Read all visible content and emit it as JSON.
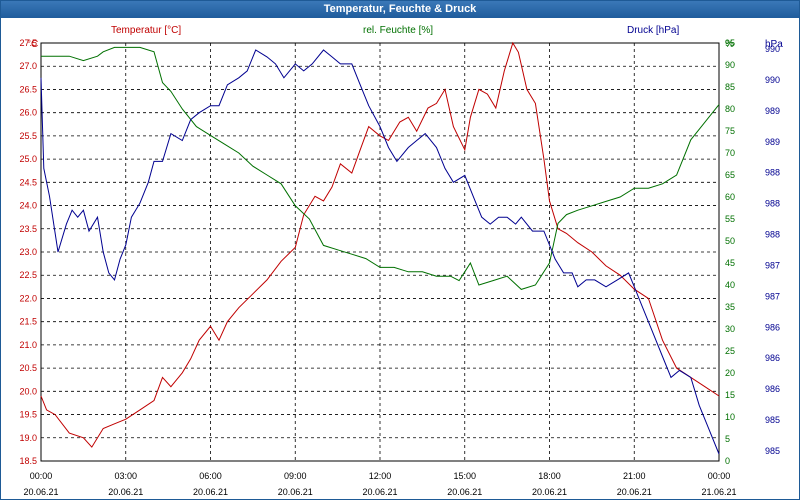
{
  "window": {
    "title": "Temperatur, Feuchte & Druck"
  },
  "chart_data": {
    "type": "line",
    "title": "Temperatur, Feuchte & Druck",
    "x_unit": "hours since 20.06.21 00:00",
    "xlim": [
      0,
      24
    ],
    "x_ticks": [
      {
        "time": "00:00",
        "date": "20.06.21"
      },
      {
        "time": "03:00",
        "date": "20.06.21"
      },
      {
        "time": "06:00",
        "date": "20.06.21"
      },
      {
        "time": "09:00",
        "date": "20.06.21"
      },
      {
        "time": "12:00",
        "date": "20.06.21"
      },
      {
        "time": "15:00",
        "date": "20.06.21"
      },
      {
        "time": "18:00",
        "date": "20.06.21"
      },
      {
        "time": "21:00",
        "date": "20.06.21"
      },
      {
        "time": "00:00",
        "date": "21.06.21"
      }
    ],
    "axes": {
      "temperature": {
        "label": "Temperatur [°C]",
        "unit": "°C",
        "min": 18.5,
        "max": 27.5,
        "ticks": [
          "18.5",
          "19.0",
          "19.5",
          "20.0",
          "20.5",
          "21.0",
          "21.5",
          "22.0",
          "22.5",
          "23.0",
          "23.5",
          "24.0",
          "24.5",
          "25.0",
          "25.5",
          "26.0",
          "26.5",
          "27.0",
          "27.5"
        ],
        "color": "#c00000"
      },
      "humidity": {
        "label": "rel. Feuchte [%]",
        "unit": "%",
        "min": 0,
        "max": 95,
        "ticks": [
          "0",
          "5",
          "10",
          "15",
          "20",
          "25",
          "30",
          "35",
          "40",
          "45",
          "50",
          "55",
          "60",
          "65",
          "70",
          "75",
          "80",
          "85",
          "90",
          "95"
        ],
        "color": "#007000"
      },
      "pressure": {
        "label": "Druck [hPa]",
        "unit": "hPa",
        "min": 984.5,
        "max": 990.5,
        "ticks": [
          "985",
          "985",
          "986",
          "986",
          "986",
          "987",
          "987",
          "988",
          "988",
          "988",
          "989",
          "989",
          "990",
          "990"
        ],
        "color": "#000090"
      }
    },
    "series": [
      {
        "name": "Temperatur [°C]",
        "axis": "temperature",
        "color": "#c00000",
        "x": [
          0,
          0.2,
          0.5,
          1,
          1.5,
          1.8,
          2.2,
          2.6,
          3,
          3.5,
          4,
          4.3,
          4.6,
          5,
          5.3,
          5.6,
          6,
          6.3,
          6.6,
          7,
          7.5,
          8,
          8.5,
          9,
          9.3,
          9.7,
          10,
          10.3,
          10.6,
          11,
          11.3,
          11.6,
          12,
          12.3,
          12.7,
          13,
          13.3,
          13.7,
          14,
          14.3,
          14.6,
          15,
          15.2,
          15.5,
          15.8,
          16.1,
          16.4,
          16.7,
          16.9,
          17.2,
          17.5,
          17.8,
          18,
          18.3,
          18.6,
          19,
          19.5,
          20,
          20.5,
          21,
          21.5,
          22,
          22.5,
          23,
          23.5,
          24
        ],
        "y": [
          19.9,
          19.6,
          19.5,
          19.1,
          19.0,
          18.8,
          19.2,
          19.3,
          19.4,
          19.6,
          19.8,
          20.3,
          20.1,
          20.4,
          20.7,
          21.1,
          21.4,
          21.1,
          21.5,
          21.8,
          22.1,
          22.4,
          22.8,
          23.1,
          23.8,
          24.2,
          24.1,
          24.4,
          24.9,
          24.7,
          25.2,
          25.7,
          25.5,
          25.4,
          25.8,
          25.9,
          25.6,
          26.1,
          26.2,
          26.5,
          25.7,
          25.2,
          25.9,
          26.5,
          26.4,
          26.1,
          26.9,
          27.5,
          27.3,
          26.5,
          26.2,
          25.0,
          24.1,
          23.5,
          23.4,
          23.2,
          23.0,
          22.7,
          22.5,
          22.2,
          22.0,
          21.1,
          20.5,
          20.3,
          20.1,
          19.9
        ]
      },
      {
        "name": "rel. Feuchte [%]",
        "axis": "humidity",
        "color": "#007000",
        "x": [
          0,
          0.5,
          1,
          1.5,
          2,
          2.2,
          2.6,
          3,
          3.5,
          4,
          4.3,
          4.6,
          5,
          5.5,
          6,
          6.5,
          7,
          7.5,
          8,
          8.5,
          9,
          9.5,
          10,
          10.5,
          11,
          11.5,
          12,
          12.5,
          13,
          13.5,
          14,
          14.5,
          14.8,
          15,
          15.2,
          15.5,
          16,
          16.5,
          17,
          17.5,
          18,
          18.3,
          18.6,
          19,
          19.5,
          20,
          20.5,
          21,
          21.5,
          22,
          22.5,
          23,
          23.5,
          24
        ],
        "y": [
          92,
          92,
          92,
          91,
          92,
          93,
          94,
          94,
          94,
          93,
          86,
          84,
          80,
          76,
          74,
          72,
          70,
          67,
          65,
          63,
          58,
          55,
          49,
          48,
          47,
          46,
          44,
          44,
          43,
          43,
          42,
          42,
          41,
          43,
          45,
          40,
          41,
          42,
          39,
          40,
          45,
          54,
          56,
          57,
          58,
          59,
          60,
          62,
          62,
          63,
          65,
          73,
          77,
          81
        ]
      },
      {
        "name": "Druck [hPa]",
        "axis": "pressure",
        "color": "#000090",
        "x": [
          0,
          0.1,
          0.3,
          0.6,
          0.9,
          1.1,
          1.3,
          1.5,
          1.7,
          2,
          2.2,
          2.4,
          2.6,
          2.8,
          3,
          3.2,
          3.5,
          3.8,
          4,
          4.3,
          4.6,
          5,
          5.3,
          5.6,
          6,
          6.3,
          6.6,
          7,
          7.3,
          7.6,
          8,
          8.3,
          8.6,
          9,
          9.3,
          9.6,
          10,
          10.3,
          10.6,
          11,
          11.3,
          11.6,
          12,
          12.3,
          12.6,
          13,
          13.3,
          13.6,
          14,
          14.3,
          14.6,
          15,
          15.3,
          15.6,
          15.9,
          16.2,
          16.5,
          16.8,
          17,
          17.4,
          17.8,
          18,
          18.2,
          18.5,
          18.8,
          19,
          19.3,
          19.6,
          20,
          20.4,
          20.8,
          21,
          21.3,
          21.6,
          22,
          22.3,
          22.6,
          23,
          23.3,
          23.6,
          24
        ],
        "y": [
          990.0,
          988.7,
          988.3,
          987.5,
          987.9,
          988.1,
          988.0,
          988.1,
          987.8,
          988.0,
          987.5,
          987.2,
          987.1,
          987.4,
          987.6,
          988.0,
          988.2,
          988.5,
          988.8,
          988.8,
          989.2,
          989.1,
          989.4,
          989.5,
          989.6,
          989.6,
          989.9,
          990.0,
          990.1,
          990.4,
          990.3,
          990.2,
          990.0,
          990.2,
          990.1,
          990.2,
          990.4,
          990.3,
          990.2,
          990.2,
          989.9,
          989.6,
          989.3,
          989.0,
          988.8,
          989.0,
          989.1,
          989.2,
          989.0,
          988.7,
          988.5,
          988.6,
          988.3,
          988.0,
          987.9,
          988.0,
          988.0,
          987.9,
          988.0,
          987.8,
          987.8,
          987.6,
          987.4,
          987.2,
          987.2,
          987.0,
          987.1,
          987.1,
          987.0,
          987.1,
          987.2,
          987.0,
          986.7,
          986.4,
          986.0,
          985.7,
          985.8,
          985.7,
          985.3,
          985.0,
          984.6
        ]
      }
    ],
    "grid": true
  }
}
